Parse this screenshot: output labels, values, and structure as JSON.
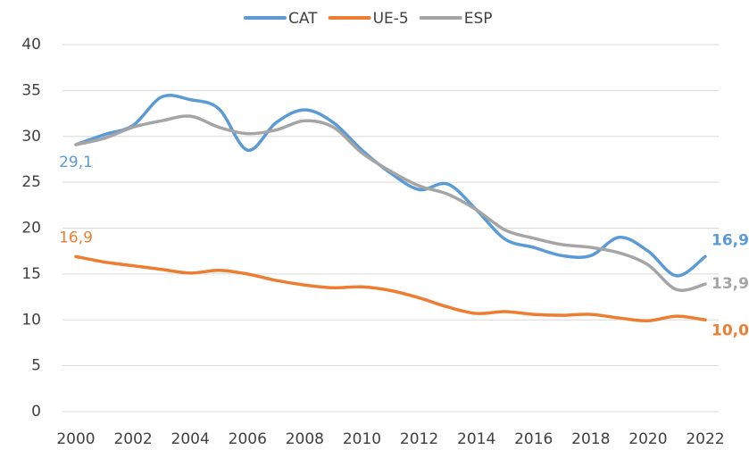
{
  "chart_data": {
    "type": "line",
    "x": [
      2000,
      2001,
      2002,
      2003,
      2004,
      2005,
      2006,
      2007,
      2008,
      2009,
      2010,
      2011,
      2012,
      2013,
      2014,
      2015,
      2016,
      2017,
      2018,
      2019,
      2020,
      2021,
      2022
    ],
    "series": [
      {
        "name": "CAT",
        "color": "#5b9bd5",
        "values": [
          29.1,
          30.2,
          31.2,
          34.3,
          34.0,
          33.0,
          28.5,
          31.5,
          32.9,
          31.5,
          28.5,
          26.0,
          24.2,
          24.8,
          22.0,
          18.8,
          17.9,
          17.0,
          17.0,
          19.0,
          17.5,
          14.8,
          16.9
        ],
        "value_labels": [
          "29,1",
          null,
          null,
          null,
          null,
          null,
          null,
          null,
          null,
          null,
          null,
          null,
          null,
          null,
          null,
          null,
          null,
          null,
          null,
          null,
          null,
          null,
          "16,9"
        ]
      },
      {
        "name": "UE-5",
        "color": "#ed7d31",
        "values": [
          16.9,
          16.3,
          15.9,
          15.5,
          15.1,
          15.4,
          15.0,
          14.3,
          13.8,
          13.5,
          13.6,
          13.2,
          12.4,
          11.4,
          10.7,
          10.9,
          10.6,
          10.5,
          10.6,
          10.2,
          9.9,
          10.4,
          10.0
        ],
        "value_labels": [
          "16,9",
          null,
          null,
          null,
          null,
          null,
          null,
          null,
          null,
          null,
          null,
          null,
          null,
          null,
          null,
          null,
          null,
          null,
          null,
          null,
          null,
          null,
          "10,0"
        ]
      },
      {
        "name": "ESP",
        "color": "#a5a5a5",
        "values": [
          29.1,
          29.8,
          31.0,
          31.7,
          32.2,
          31.0,
          30.3,
          30.7,
          31.7,
          31.0,
          28.2,
          26.2,
          24.6,
          23.7,
          22.0,
          19.8,
          18.9,
          18.2,
          17.9,
          17.3,
          16.0,
          13.3,
          13.9
        ],
        "value_labels": [
          null,
          null,
          null,
          null,
          null,
          null,
          null,
          null,
          null,
          null,
          null,
          null,
          null,
          null,
          null,
          null,
          null,
          null,
          null,
          null,
          null,
          null,
          "13,9"
        ]
      }
    ],
    "xlim": [
      2000,
      2022
    ],
    "xticks": [
      2000,
      2002,
      2004,
      2006,
      2008,
      2010,
      2012,
      2014,
      2016,
      2018,
      2020,
      2022
    ],
    "ylim": [
      0,
      40
    ],
    "yticks": [
      0,
      5,
      10,
      15,
      20,
      25,
      30,
      35,
      40
    ],
    "grid": true,
    "legend": "top"
  }
}
